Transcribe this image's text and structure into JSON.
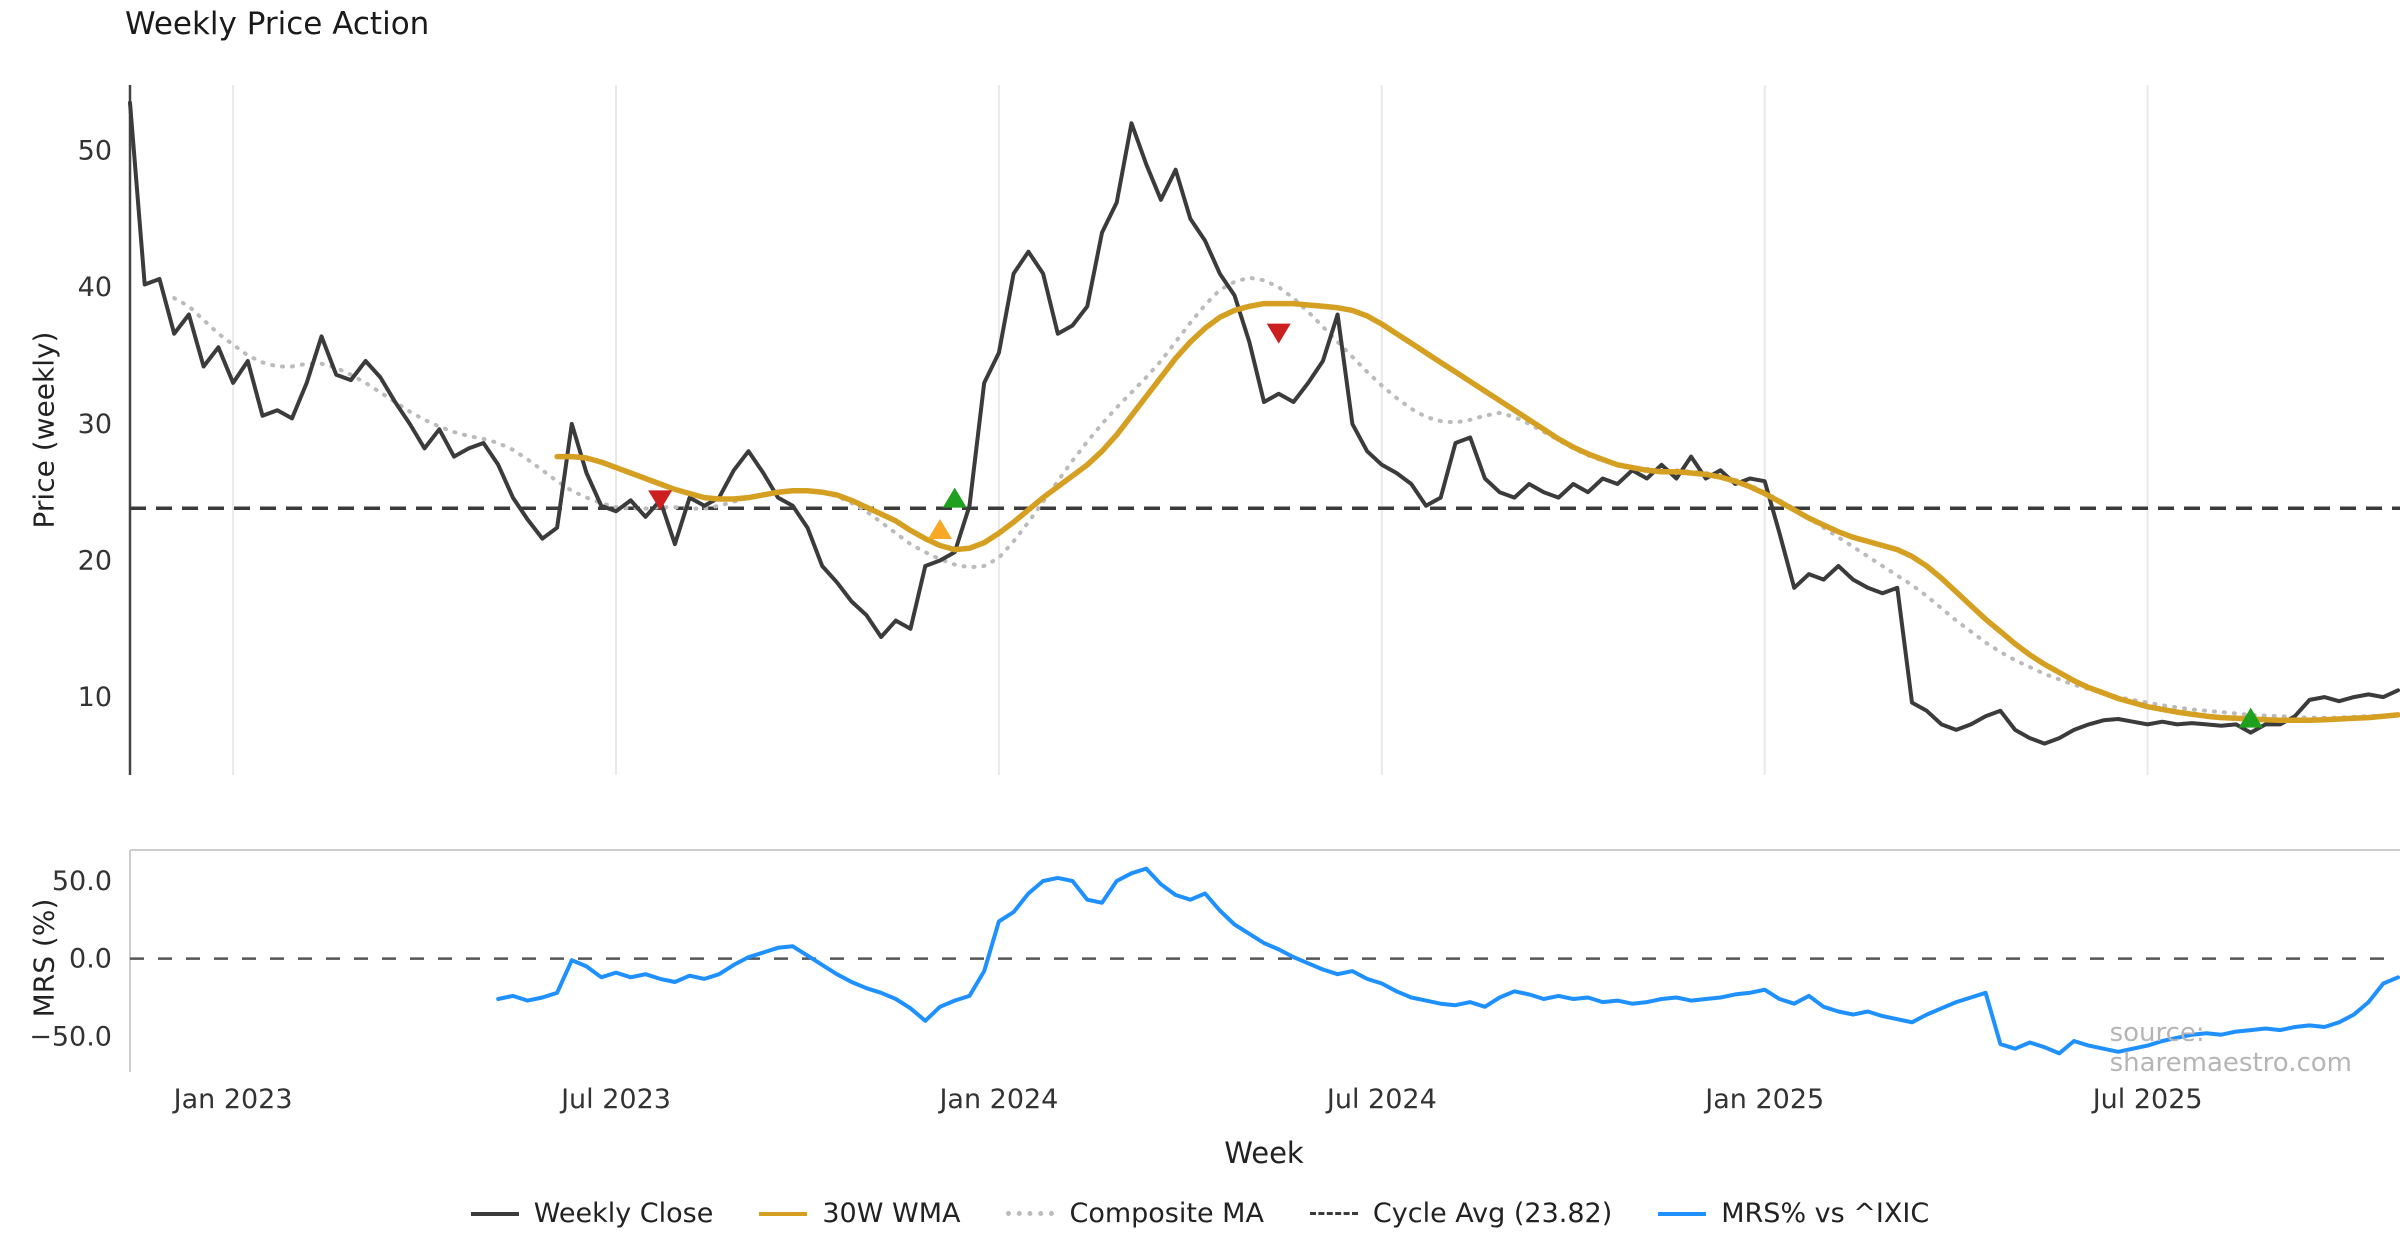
{
  "title": "Weekly Price Action",
  "watermark": "source: sharemaestro.com",
  "axes": {
    "price_label": "Price (weekly)",
    "mrs_label": "MRS (%)",
    "x_label": "Week",
    "price_ticks": [
      50,
      40,
      30,
      20,
      10
    ],
    "mrs_ticks": [
      {
        "v": 50,
        "label": "50.0"
      },
      {
        "v": 0,
        "label": "0.0"
      },
      {
        "v": -50,
        "label": "−50.0"
      }
    ],
    "x_ticks": [
      {
        "week": 7,
        "label": "Jan 2023"
      },
      {
        "week": 33,
        "label": "Jul 2023"
      },
      {
        "week": 59,
        "label": "Jan 2024"
      },
      {
        "week": 85,
        "label": "Jul 2024"
      },
      {
        "week": 111,
        "label": "Jan 2025"
      },
      {
        "week": 137,
        "label": "Jul 2025"
      }
    ]
  },
  "legend": [
    {
      "label": "Weekly Close",
      "color": "#3b3b3b",
      "style": "solid"
    },
    {
      "label": "30W WMA",
      "color": "#d5a021",
      "style": "solid"
    },
    {
      "label": "Composite MA",
      "color": "#bbbbbb",
      "style": "dotted"
    },
    {
      "label": "Cycle Avg (23.82)",
      "color": "#3a3a3a",
      "style": "dashed"
    },
    {
      "label": "MRS% vs ^IXIC",
      "color": "#1e90ff",
      "style": "solid"
    }
  ],
  "chart_data": {
    "type": "line",
    "title": "Weekly Price Action",
    "xlabel": "Week",
    "ylabel_top": "Price (weekly)",
    "ylabel_bottom": "MRS (%)",
    "weeks_total": 155,
    "x_start": "Nov 2022",
    "x_end": "Nov 2025",
    "price_ylim": [
      4.3,
      54.8
    ],
    "mrs_ylim": [
      -73,
      70
    ],
    "cycle_avg": 23.82,
    "grid": "vertical-light",
    "legend_position": "bottom-center",
    "colors": {
      "close": "#3b3b3b",
      "wma": "#d5a021",
      "composite": "#bbbbbb",
      "cycle": "#3a3a3a",
      "mrs": "#1e90ff",
      "buy": "#1fa01f",
      "sell": "#cc1f1f",
      "buy_alt": "#f9a825",
      "grid": "#e9e9e9",
      "spine": "#444444",
      "spine_light": "#cccccc",
      "zero_line": "#555555"
    },
    "series": [
      {
        "id": "weekly_close",
        "name": "Weekly Close",
        "panel": "price",
        "start": 0,
        "color": "#3b3b3b",
        "width": 4,
        "dash": "",
        "values": [
          53.5,
          40.2,
          40.6,
          36.6,
          38,
          34.2,
          35.6,
          33,
          34.6,
          30.6,
          31,
          30.4,
          33,
          36.4,
          33.6,
          33.2,
          34.6,
          33.4,
          31.6,
          30,
          28.2,
          29.6,
          27.6,
          28.2,
          28.6,
          27,
          24.6,
          23,
          21.6,
          22.4,
          30,
          26.4,
          24,
          23.6,
          24.4,
          23.2,
          24.4,
          21.2,
          24.6,
          24,
          24.6,
          26.6,
          28,
          26.4,
          24.6,
          24,
          22.4,
          19.6,
          18.4,
          17,
          16,
          14.4,
          15.6,
          15,
          19.6,
          20,
          20.6,
          24,
          33,
          35.2,
          41,
          42.6,
          41,
          36.6,
          37.2,
          38.6,
          44,
          46.2,
          52,
          49,
          46.4,
          48.6,
          45,
          43.4,
          41,
          39.4,
          36,
          31.6,
          32.2,
          31.6,
          33,
          34.6,
          38,
          30,
          28,
          27,
          26.4,
          25.6,
          24,
          24.6,
          28.6,
          29,
          26,
          25,
          24.6,
          25.6,
          25,
          24.6,
          25.6,
          25,
          26,
          25.6,
          26.6,
          26,
          27,
          26,
          27.6,
          26,
          26.6,
          25.6,
          26,
          25.8,
          22,
          18,
          19,
          18.6,
          19.6,
          18.6,
          18,
          17.6,
          18,
          9.6,
          9,
          8,
          7.6,
          8,
          8.6,
          9,
          7.6,
          7,
          6.6,
          7,
          7.6,
          8,
          8.3,
          8.4,
          8.2,
          8,
          8.2,
          8,
          8.1,
          8,
          7.9,
          8,
          7.4,
          8,
          8,
          8.6,
          9.8,
          10,
          9.7,
          10,
          10.2,
          10,
          10.5
        ]
      },
      {
        "id": "wma30",
        "name": "30W WMA",
        "panel": "price",
        "start": 29,
        "color": "#d5a021",
        "width": 5.5,
        "dash": "",
        "values": [
          27.6,
          27.6,
          27.5,
          27.2,
          26.8,
          26.4,
          26,
          25.6,
          25.2,
          24.9,
          24.6,
          24.5,
          24.5,
          24.6,
          24.8,
          25,
          25.1,
          25.1,
          25,
          24.8,
          24.4,
          23.9,
          23.4,
          22.9,
          22.2,
          21.6,
          21.1,
          20.8,
          20.9,
          21.3,
          22,
          22.8,
          23.7,
          24.6,
          25.4,
          26.2,
          27,
          28,
          29.2,
          30.6,
          32,
          33.4,
          34.8,
          36,
          37,
          37.8,
          38.3,
          38.6,
          38.8,
          38.8,
          38.8,
          38.7,
          38.6,
          38.5,
          38.3,
          37.9,
          37.3,
          36.6,
          35.9,
          35.2,
          34.5,
          33.8,
          33.1,
          32.4,
          31.7,
          31,
          30.3,
          29.6,
          28.9,
          28.3,
          27.8,
          27.4,
          27,
          26.8,
          26.6,
          26.5,
          26.5,
          26.4,
          26.3,
          26.1,
          25.8,
          25.4,
          24.9,
          24.3,
          23.7,
          23.1,
          22.6,
          22.1,
          21.7,
          21.4,
          21.1,
          20.8,
          20.3,
          19.6,
          18.7,
          17.7,
          16.7,
          15.7,
          14.8,
          13.9,
          13.1,
          12.4,
          11.8,
          11.2,
          10.7,
          10.3,
          9.9,
          9.6,
          9.3,
          9.1,
          8.9,
          8.75,
          8.6,
          8.5,
          8.45,
          8.4,
          8.35,
          8.3,
          8.3,
          8.3,
          8.35,
          8.4,
          8.45,
          8.5,
          8.6,
          8.7
        ]
      },
      {
        "id": "composite",
        "name": "Composite MA",
        "panel": "price",
        "start": 3,
        "color": "#bbbbbb",
        "width": 4,
        "dash": "1 9",
        "values": [
          39.2,
          38.6,
          37.6,
          36.6,
          35.8,
          35,
          34.5,
          34.2,
          34.2,
          34.4,
          34.4,
          34.1,
          33.6,
          33,
          32.3,
          31.6,
          30.9,
          30.3,
          29.8,
          29.4,
          29.1,
          28.9,
          28.6,
          28.1,
          27.4,
          26.6,
          25.8,
          25.1,
          24.6,
          24.2,
          23.9,
          23.8,
          23.8,
          23.9,
          23.9,
          23.8,
          23.8,
          24,
          24.3,
          24.6,
          24.8,
          25,
          25.1,
          25.1,
          25,
          24.7,
          24.2,
          23.6,
          22.8,
          22,
          21.2,
          20.6,
          20.1,
          19.7,
          19.5,
          19.6,
          20.2,
          21.4,
          22.8,
          24.3,
          25.8,
          27.3,
          28.7,
          30,
          31.2,
          32.3,
          33.4,
          34.6,
          36,
          37.4,
          38.7,
          39.8,
          40.4,
          40.7,
          40.5,
          40,
          39.2,
          38.2,
          37.1,
          36,
          34.9,
          33.8,
          32.8,
          31.9,
          31.1,
          30.5,
          30.2,
          30.1,
          30.3,
          30.6,
          30.8,
          30.5,
          30,
          29.4,
          28.8,
          28.2,
          27.7,
          27.3,
          27,
          26.8,
          26.7,
          26.6,
          26.6,
          26.5,
          26.4,
          26.2,
          25.9,
          25.5,
          25,
          24.4,
          23.8,
          23.1,
          22.4,
          21.7,
          21,
          20.3,
          19.6,
          18.9,
          18.2,
          17.4,
          16.5,
          15.6,
          14.8,
          14,
          13.3,
          12.7,
          12.2,
          11.7,
          11.3,
          10.9,
          10.6,
          10.3,
          10,
          9.8,
          9.6,
          9.4,
          9.25,
          9.1,
          9,
          8.9,
          8.8,
          8.7,
          8.65,
          8.6,
          8.55,
          8.5,
          8.5,
          8.5,
          8.55,
          8.6,
          8.65,
          8.7
        ]
      },
      {
        "id": "mrs",
        "name": "MRS% vs ^IXIC",
        "panel": "mrs",
        "start": 25,
        "color": "#1e90ff",
        "width": 4,
        "dash": "",
        "values": [
          -26,
          -24,
          -27,
          -25,
          -22,
          -1,
          -5,
          -12,
          -9,
          -12,
          -10,
          -13,
          -15,
          -11,
          -13,
          -10,
          -4,
          1,
          4,
          7,
          8,
          2,
          -4,
          -10,
          -15,
          -19,
          -22,
          -26,
          -32,
          -40,
          -31,
          -27,
          -24,
          -8,
          24,
          30,
          42,
          50,
          52,
          50,
          38,
          36,
          50,
          55,
          58,
          48,
          41,
          38,
          42,
          31,
          22,
          16,
          10,
          6,
          1,
          -3,
          -7,
          -10,
          -8,
          -13,
          -16,
          -21,
          -25,
          -27,
          -29,
          -30,
          -28,
          -31,
          -25,
          -21,
          -23,
          -26,
          -24,
          -26,
          -25,
          -28,
          -27,
          -29,
          -28,
          -26,
          -25,
          -27,
          -26,
          -25,
          -23,
          -22,
          -20,
          -26,
          -29,
          -24,
          -31,
          -34,
          -36,
          -34,
          -37,
          -39,
          -41,
          -36,
          -32,
          -28,
          -25,
          -22,
          -55,
          -58,
          -54,
          -57,
          -61,
          -53,
          -56,
          -58,
          -60,
          -58,
          -56,
          -53,
          -51,
          -49,
          -48,
          -49,
          -47,
          -46,
          -45,
          -46,
          -44,
          -43,
          -44,
          -41,
          -36,
          -28,
          -16,
          -12
        ]
      }
    ],
    "markers": {
      "sell": [
        {
          "week": 36,
          "value": 24.4
        },
        {
          "week": 78,
          "value": 36.6
        }
      ],
      "buy": [
        {
          "week": 56,
          "value": 24.6
        },
        {
          "week": 144,
          "value": 8.5
        }
      ],
      "buy_alt": [
        {
          "week": 55,
          "value": 22.3
        }
      ]
    }
  }
}
